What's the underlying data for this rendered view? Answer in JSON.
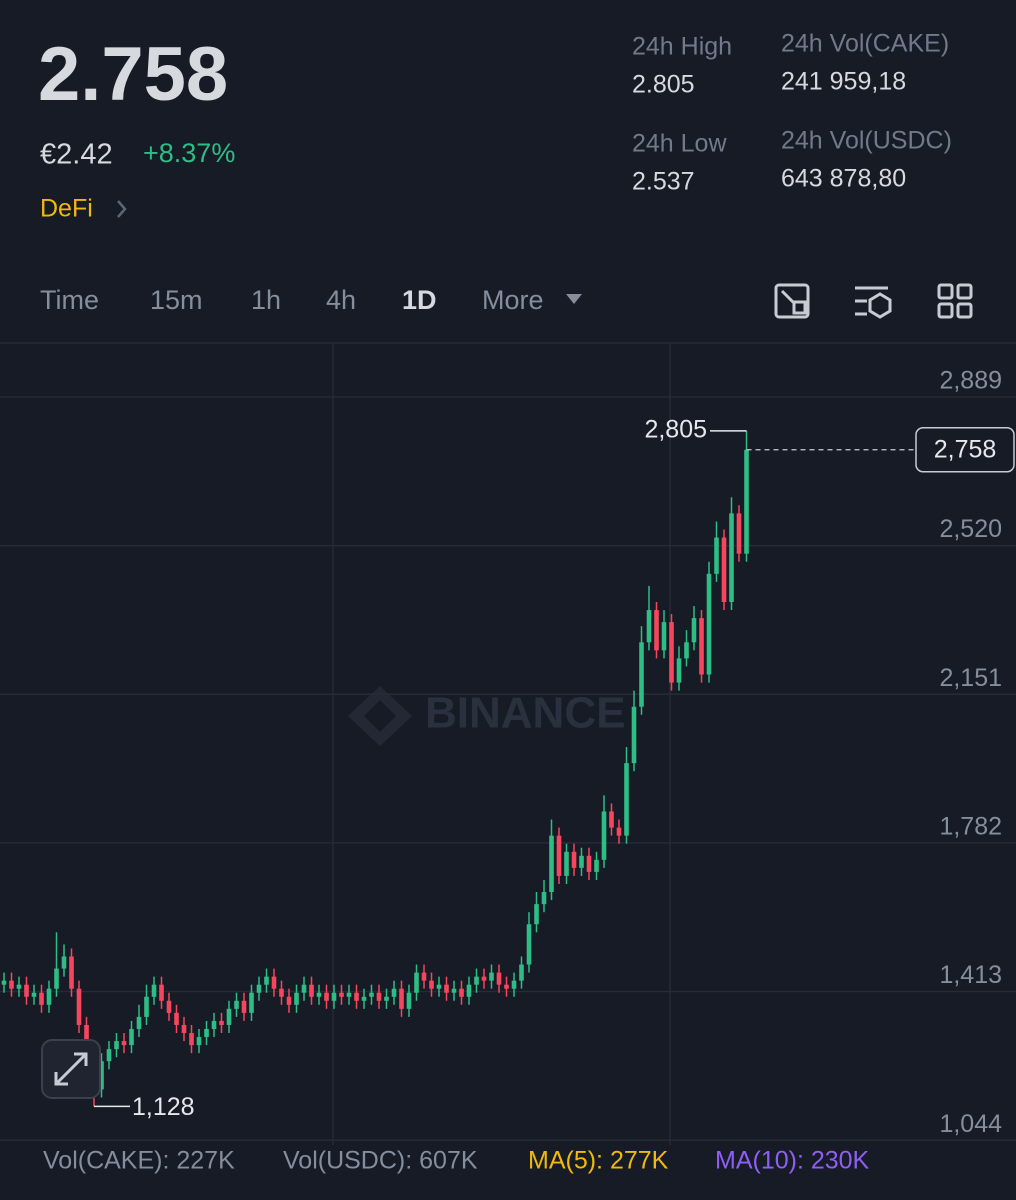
{
  "header": {
    "price": "2.758",
    "fiat": "€2.42",
    "change": "+8.37%",
    "tag": "DeFi",
    "stats": [
      {
        "label": "24h High",
        "value": "2.805"
      },
      {
        "label": "24h Vol(CAKE)",
        "value": "241 959,18"
      },
      {
        "label": "24h Low",
        "value": "2.537"
      },
      {
        "label": "24h Vol(USDC)",
        "value": "643 878,80"
      }
    ]
  },
  "tabs": [
    "Time",
    "15m",
    "1h",
    "4h",
    "1D",
    "More"
  ],
  "chart_data": {
    "type": "candlestick",
    "watermark": "BINANCE",
    "open": [
      1.43,
      1.44,
      1.42,
      1.43,
      1.4,
      1.41,
      1.38,
      1.42,
      1.47,
      1.5,
      1.42,
      1.33,
      1.25,
      1.17,
      1.24,
      1.27,
      1.29,
      1.28,
      1.32,
      1.35,
      1.4,
      1.43,
      1.39,
      1.36,
      1.33,
      1.31,
      1.28,
      1.3,
      1.32,
      1.34,
      1.33,
      1.37,
      1.39,
      1.36,
      1.41,
      1.43,
      1.45,
      1.42,
      1.4,
      1.38,
      1.41,
      1.43,
      1.4,
      1.41,
      1.39,
      1.41,
      1.4,
      1.41,
      1.39,
      1.4,
      1.41,
      1.39,
      1.4,
      1.42,
      1.37,
      1.41,
      1.46,
      1.44,
      1.42,
      1.43,
      1.41,
      1.42,
      1.4,
      1.43,
      1.45,
      1.44,
      1.46,
      1.43,
      1.42,
      1.44,
      1.48,
      1.58,
      1.63,
      1.66,
      1.8,
      1.7,
      1.76,
      1.72,
      1.75,
      1.71,
      1.74,
      1.86,
      1.82,
      1.8,
      1.98,
      2.12,
      2.28,
      2.36,
      2.26,
      2.33,
      2.18,
      2.24,
      2.28,
      2.34,
      2.2,
      2.45,
      2.54,
      2.38,
      2.6,
      2.5
    ],
    "high": [
      1.46,
      1.46,
      1.45,
      1.45,
      1.43,
      1.43,
      1.44,
      1.56,
      1.53,
      1.52,
      1.44,
      1.35,
      1.27,
      1.26,
      1.29,
      1.31,
      1.31,
      1.34,
      1.38,
      1.43,
      1.45,
      1.45,
      1.41,
      1.38,
      1.35,
      1.33,
      1.32,
      1.34,
      1.36,
      1.36,
      1.39,
      1.41,
      1.41,
      1.43,
      1.45,
      1.47,
      1.47,
      1.44,
      1.42,
      1.43,
      1.45,
      1.45,
      1.43,
      1.43,
      1.43,
      1.43,
      1.43,
      1.43,
      1.42,
      1.43,
      1.43,
      1.42,
      1.44,
      1.44,
      1.43,
      1.48,
      1.48,
      1.46,
      1.45,
      1.45,
      1.44,
      1.44,
      1.45,
      1.47,
      1.47,
      1.48,
      1.48,
      1.45,
      1.46,
      1.5,
      1.61,
      1.66,
      1.69,
      1.84,
      1.82,
      1.78,
      1.78,
      1.77,
      1.77,
      1.76,
      1.9,
      1.88,
      1.84,
      2.02,
      2.16,
      2.32,
      2.42,
      2.38,
      2.36,
      2.35,
      2.27,
      2.31,
      2.37,
      2.36,
      2.48,
      2.58,
      2.56,
      2.64,
      2.62,
      2.805
    ],
    "low": [
      1.41,
      1.4,
      1.4,
      1.38,
      1.38,
      1.36,
      1.36,
      1.4,
      1.45,
      1.4,
      1.31,
      1.23,
      1.128,
      1.15,
      1.22,
      1.25,
      1.26,
      1.26,
      1.3,
      1.33,
      1.38,
      1.37,
      1.34,
      1.31,
      1.29,
      1.26,
      1.26,
      1.28,
      1.3,
      1.31,
      1.31,
      1.35,
      1.34,
      1.34,
      1.39,
      1.41,
      1.4,
      1.38,
      1.36,
      1.36,
      1.39,
      1.38,
      1.38,
      1.37,
      1.37,
      1.38,
      1.38,
      1.37,
      1.37,
      1.38,
      1.37,
      1.37,
      1.38,
      1.35,
      1.35,
      1.39,
      1.42,
      1.4,
      1.4,
      1.39,
      1.39,
      1.38,
      1.38,
      1.41,
      1.42,
      1.42,
      1.41,
      1.4,
      1.4,
      1.42,
      1.46,
      1.56,
      1.61,
      1.64,
      1.68,
      1.68,
      1.7,
      1.7,
      1.69,
      1.69,
      1.72,
      1.8,
      1.78,
      1.78,
      1.96,
      2.1,
      2.26,
      2.24,
      2.24,
      2.16,
      2.16,
      2.22,
      2.26,
      2.18,
      2.18,
      2.43,
      2.36,
      2.36,
      2.48,
      2.48
    ],
    "close": [
      1.44,
      1.42,
      1.43,
      1.4,
      1.41,
      1.38,
      1.42,
      1.47,
      1.5,
      1.42,
      1.33,
      1.25,
      1.17,
      1.24,
      1.27,
      1.29,
      1.28,
      1.32,
      1.35,
      1.4,
      1.43,
      1.39,
      1.36,
      1.33,
      1.31,
      1.28,
      1.3,
      1.32,
      1.34,
      1.33,
      1.37,
      1.39,
      1.36,
      1.41,
      1.43,
      1.45,
      1.42,
      1.4,
      1.38,
      1.41,
      1.43,
      1.4,
      1.41,
      1.39,
      1.41,
      1.4,
      1.41,
      1.39,
      1.4,
      1.41,
      1.39,
      1.4,
      1.42,
      1.37,
      1.41,
      1.46,
      1.44,
      1.42,
      1.43,
      1.41,
      1.42,
      1.4,
      1.43,
      1.45,
      1.44,
      1.46,
      1.43,
      1.42,
      1.44,
      1.48,
      1.58,
      1.63,
      1.66,
      1.8,
      1.7,
      1.76,
      1.72,
      1.75,
      1.71,
      1.74,
      1.86,
      1.82,
      1.8,
      1.98,
      2.12,
      2.28,
      2.36,
      2.26,
      2.33,
      2.18,
      2.24,
      2.28,
      2.34,
      2.2,
      2.45,
      2.54,
      2.38,
      2.6,
      2.5,
      2.758
    ],
    "ylim": [
      1.032,
      3.023
    ],
    "yticks": [
      {
        "value": 2.889,
        "label": "2,889"
      },
      {
        "value": 2.52,
        "label": "2,520"
      },
      {
        "value": 2.151,
        "label": "2,151"
      },
      {
        "value": 1.782,
        "label": "1,782"
      },
      {
        "value": 1.413,
        "label": "1,413"
      },
      {
        "value": 1.044,
        "label": "1,044"
      }
    ],
    "grid": true,
    "up_color": "#2ebd85",
    "down_color": "#f6465d",
    "last_price": {
      "value": 2.758,
      "label": "2,758"
    },
    "annotations": [
      {
        "value": 2.805,
        "label": "2,805"
      },
      {
        "value": 1.128,
        "label": "1,128"
      }
    ]
  },
  "volume_legend": [
    {
      "text": "Vol(CAKE): 227K",
      "color": "#848e9c"
    },
    {
      "text": "Vol(USDC): 607K",
      "color": "#848e9c"
    },
    {
      "text": "MA(5): 277K",
      "color": "#f0b90b"
    },
    {
      "text": "MA(10): 230K",
      "color": "#8e5ff5"
    }
  ]
}
